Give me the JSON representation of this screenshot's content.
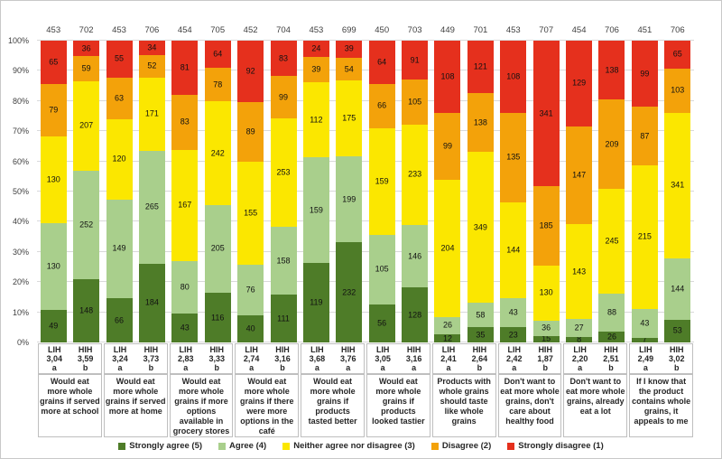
{
  "chart_data": {
    "type": "bar",
    "subtype": "100-percent-stacked-column",
    "title": "",
    "xlabel": "",
    "ylabel": "",
    "ylim": [
      "0%",
      "100%"
    ],
    "grid": true,
    "legend_position": "bottom",
    "y_ticks": [
      "0%",
      "10%",
      "20%",
      "30%",
      "40%",
      "50%",
      "60%",
      "70%",
      "80%",
      "90%",
      "100%"
    ],
    "series": [
      {
        "name": "Strongly agree (5)",
        "color": "#4E7C28"
      },
      {
        "name": "Agree (4)",
        "color": "#A9CF8C"
      },
      {
        "name": "Neither agree nor disagree (3)",
        "color": "#FBE700"
      },
      {
        "name": "Disagree (2)",
        "color": "#F3A20A"
      },
      {
        "name": "Strongly disagree (1)",
        "color": "#E5301D"
      }
    ],
    "palette": {
      "gridline": "#d9d9d9",
      "box_border": "#bfbfbf",
      "axis_text": "#404040",
      "frame_border": "#c9c9c9"
    },
    "groups": [
      {
        "question": "Would eat more whole grains if served more at school",
        "bars": [
          {
            "cohort": "LIH",
            "mean": "3,04",
            "sig": "a",
            "total": 453,
            "values": [
              49,
              130,
              130,
              79,
              65
            ]
          },
          {
            "cohort": "HIH",
            "mean": "3,59",
            "sig": "b",
            "total": 702,
            "values": [
              148,
              252,
              207,
              59,
              36
            ]
          }
        ]
      },
      {
        "question": "Would eat more whole grains if served more at home",
        "bars": [
          {
            "cohort": "LIH",
            "mean": "3,24",
            "sig": "a",
            "total": 453,
            "values": [
              66,
              149,
              120,
              63,
              55
            ]
          },
          {
            "cohort": "HIH",
            "mean": "3,73",
            "sig": "b",
            "total": 706,
            "values": [
              184,
              265,
              171,
              52,
              34
            ]
          }
        ]
      },
      {
        "question": "Would eat more whole grains if more options available in grocery stores",
        "bars": [
          {
            "cohort": "LIH",
            "mean": "2,83",
            "sig": "a",
            "total": 454,
            "values": [
              43,
              80,
              167,
              83,
              81
            ]
          },
          {
            "cohort": "HIH",
            "mean": "3,33",
            "sig": "b",
            "total": 705,
            "values": [
              116,
              205,
              242,
              78,
              64
            ]
          }
        ]
      },
      {
        "question": "Would eat more whole grains if there were more options in the café",
        "bars": [
          {
            "cohort": "LIH",
            "mean": "2,74",
            "sig": "a",
            "total": 452,
            "values": [
              40,
              76,
              155,
              89,
              92
            ]
          },
          {
            "cohort": "HIH",
            "mean": "3,16",
            "sig": "b",
            "total": 704,
            "values": [
              111,
              158,
              253,
              99,
              83
            ]
          }
        ]
      },
      {
        "question": "Would eat more whole grains if products tasted better",
        "bars": [
          {
            "cohort": "LIH",
            "mean": "3,68",
            "sig": "a",
            "total": 453,
            "values": [
              119,
              159,
              112,
              39,
              24
            ]
          },
          {
            "cohort": "HIH",
            "mean": "3,76",
            "sig": "a",
            "total": 699,
            "values": [
              232,
              199,
              175,
              54,
              39
            ]
          }
        ]
      },
      {
        "question": "Would eat more whole grains if products looked tastier",
        "bars": [
          {
            "cohort": "LIH",
            "mean": "3,05",
            "sig": "a",
            "total": 450,
            "values": [
              56,
              105,
              159,
              66,
              64
            ]
          },
          {
            "cohort": "HIH",
            "mean": "3,16",
            "sig": "a",
            "total": 703,
            "values": [
              128,
              146,
              233,
              105,
              91
            ]
          }
        ]
      },
      {
        "question": "Products with whole grains should taste like whole grains",
        "bars": [
          {
            "cohort": "LIH",
            "mean": "2,41",
            "sig": "a",
            "total": 449,
            "values": [
              12,
              26,
              204,
              99,
              108
            ]
          },
          {
            "cohort": "HIH",
            "mean": "2,64",
            "sig": "b",
            "total": 701,
            "values": [
              35,
              58,
              349,
              138,
              121
            ]
          }
        ]
      },
      {
        "question": "Don't want to eat more whole grains, don't care about healthy food",
        "bars": [
          {
            "cohort": "LIH",
            "mean": "2,42",
            "sig": "a",
            "total": 453,
            "values": [
              23,
              43,
              144,
              135,
              108
            ]
          },
          {
            "cohort": "HIH",
            "mean": "1,87",
            "sig": "b",
            "total": 707,
            "values": [
              15,
              36,
              130,
              185,
              341
            ]
          }
        ]
      },
      {
        "question": "Don't want to eat more whole grains, already eat a lot",
        "bars": [
          {
            "cohort": "LIH",
            "mean": "2,20",
            "sig": "a",
            "total": 454,
            "values": [
              8,
              27,
              143,
              147,
              129
            ]
          },
          {
            "cohort": "HIH",
            "mean": "2,51",
            "sig": "b",
            "total": 706,
            "values": [
              26,
              88,
              245,
              209,
              138
            ]
          }
        ]
      },
      {
        "question": "If I know that the product contains whole grains, it appeals to me",
        "bars": [
          {
            "cohort": "LIH",
            "mean": "2,49",
            "sig": "a",
            "total": 451,
            "values": [
              7,
              43,
              215,
              87,
              99
            ]
          },
          {
            "cohort": "HIH",
            "mean": "3,02",
            "sig": "b",
            "total": 706,
            "values": [
              53,
              144,
              341,
              103,
              65
            ]
          }
        ]
      }
    ]
  }
}
